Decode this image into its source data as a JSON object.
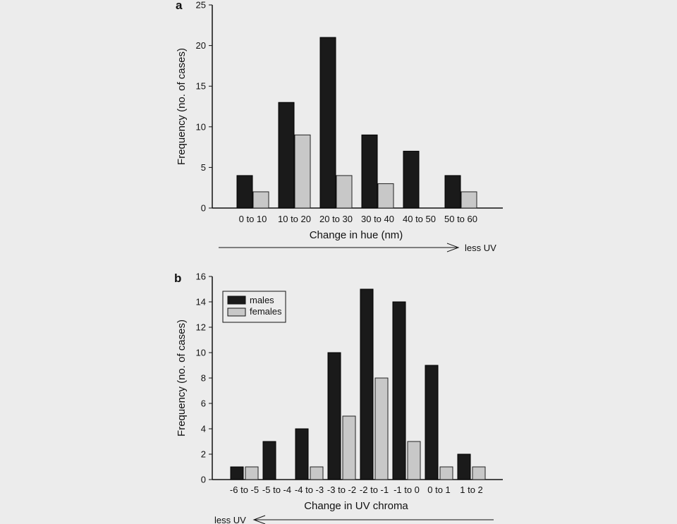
{
  "colors": {
    "male": "#1a1a1a",
    "female": "#c8c8c8",
    "axis": "#111111",
    "background": "#ececec"
  },
  "legend": {
    "placement": "top-left",
    "male_label": "males",
    "female_label": "females"
  },
  "chart_data": [
    {
      "panel": "a",
      "type": "bar",
      "categories": [
        "0 to 10",
        "10 to 20",
        "20 to 30",
        "30 to 40",
        "40 to 50",
        "50 to 60"
      ],
      "series": [
        {
          "name": "males",
          "values": [
            4,
            13,
            21,
            9,
            7,
            4
          ]
        },
        {
          "name": "females",
          "values": [
            2,
            9,
            4,
            3,
            0,
            2
          ]
        }
      ],
      "xlabel": "Change in hue (nm)",
      "ylabel": "Frequency (no. of cases)",
      "ylim": [
        0,
        25
      ],
      "yticks": [
        0,
        5,
        10,
        15,
        20,
        25
      ],
      "arrow_label": "less UV",
      "arrow_direction": "right"
    },
    {
      "panel": "b",
      "type": "bar",
      "categories": [
        "-6 to -5",
        "-5 to -4",
        "-4 to -3",
        "-3 to -2",
        "-2 to -1",
        "-1 to 0",
        "0 to 1",
        "1 to 2"
      ],
      "series": [
        {
          "name": "males",
          "values": [
            1,
            3,
            4,
            10,
            15,
            14,
            9,
            2
          ]
        },
        {
          "name": "females",
          "values": [
            1,
            0,
            1,
            5,
            8,
            3,
            1,
            1
          ]
        }
      ],
      "xlabel": "Change in UV chroma",
      "ylabel": "Frequency (no. of cases)",
      "ylim": [
        0,
        16
      ],
      "yticks": [
        0,
        2,
        4,
        6,
        8,
        10,
        12,
        14,
        16
      ],
      "arrow_label": "less UV",
      "arrow_direction": "left"
    }
  ]
}
